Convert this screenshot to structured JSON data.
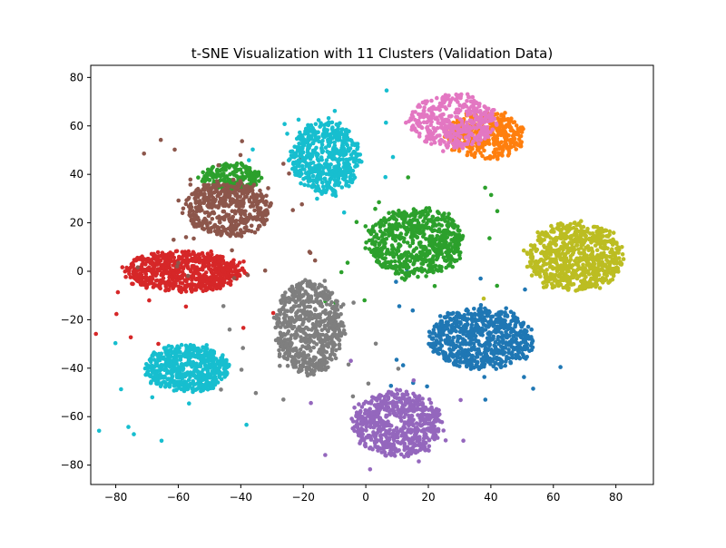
{
  "chart_data": {
    "type": "scatter",
    "title": "t-SNE Visualization with 11 Clusters (Validation Data)",
    "xlabel": "",
    "ylabel": "",
    "xlim": [
      -88,
      92
    ],
    "ylim": [
      -88,
      85
    ],
    "xticks": [
      -80,
      -60,
      -40,
      -20,
      0,
      20,
      40,
      60,
      80
    ],
    "yticks": [
      -80,
      -60,
      -40,
      -20,
      0,
      20,
      40,
      60,
      80
    ],
    "xtick_labels": [
      "−80",
      "−60",
      "−40",
      "−20",
      "0",
      "20",
      "40",
      "60",
      "80"
    ],
    "ytick_labels": [
      "−80",
      "−60",
      "−40",
      "−20",
      "0",
      "20",
      "40",
      "60",
      "80"
    ],
    "grid": false,
    "legend": "none",
    "clusters": [
      {
        "name": "cluster-blue",
        "color": "#1f77b4",
        "center": [
          37,
          -28
        ],
        "spread": [
          12,
          9
        ],
        "points": 700,
        "stray": 0.02
      },
      {
        "name": "cluster-orange",
        "color": "#ff7f0e",
        "center": [
          38,
          56
        ],
        "spread": [
          9,
          7
        ],
        "points": 350,
        "stray": 0.0
      },
      {
        "name": "cluster-green",
        "color": "#2ca02c",
        "center": [
          16,
          12
        ],
        "spread": [
          11,
          10
        ],
        "points": 650,
        "stray": 0.03
      },
      {
        "name": "cluster-green-small",
        "color": "#2ca02c",
        "center": [
          -43,
          39
        ],
        "spread": [
          7,
          4
        ],
        "points": 180,
        "stray": 0.0
      },
      {
        "name": "cluster-red",
        "color": "#d62728",
        "center": [
          -58,
          0
        ],
        "spread": [
          14,
          6
        ],
        "points": 650,
        "stray": 0.01
      },
      {
        "name": "cluster-purple",
        "color": "#9467bd",
        "center": [
          10,
          -63
        ],
        "spread": [
          10,
          10
        ],
        "points": 650,
        "stray": 0.02
      },
      {
        "name": "cluster-brown",
        "color": "#8c564b",
        "center": [
          -44,
          26
        ],
        "spread": [
          10,
          8
        ],
        "points": 500,
        "stray": 0.08
      },
      {
        "name": "cluster-pink",
        "color": "#e377c2",
        "center": [
          28,
          62
        ],
        "spread": [
          10,
          8
        ],
        "points": 400,
        "stray": 0.0
      },
      {
        "name": "cluster-gray",
        "color": "#7f7f7f",
        "center": [
          -18,
          -23
        ],
        "spread": [
          8,
          14
        ],
        "points": 650,
        "stray": 0.02
      },
      {
        "name": "cluster-olive",
        "color": "#bcbd22",
        "center": [
          67,
          6
        ],
        "spread": [
          11,
          10
        ],
        "points": 750,
        "stray": 0.01
      },
      {
        "name": "cluster-cyan-top",
        "color": "#17becf",
        "center": [
          -13,
          47
        ],
        "spread": [
          8,
          11
        ],
        "points": 550,
        "stray": 0.02
      },
      {
        "name": "cluster-cyan-bottom",
        "color": "#17becf",
        "center": [
          -57,
          -40
        ],
        "spread": [
          10,
          7
        ],
        "points": 550,
        "stray": 0.01
      }
    ]
  }
}
